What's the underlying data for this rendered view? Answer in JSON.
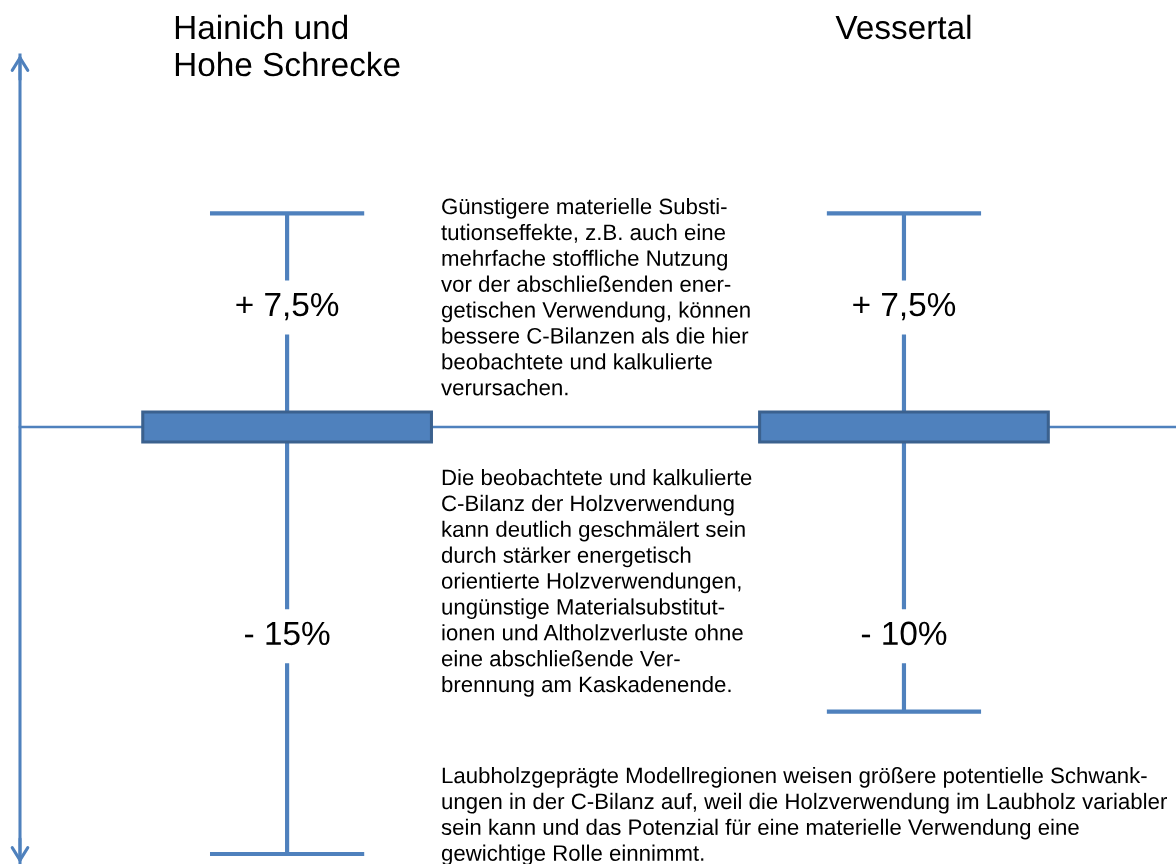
{
  "chart_data": {
    "type": "other",
    "categories": [
      "Hainich und\nHohe Schrecke",
      "Vessertal"
    ],
    "series": [
      {
        "color": "#4f81bd",
        "values": [
          7.5,
          7.5
        ],
        "value_labels": [
          "+ 7,5%",
          "+ 7,5%"
        ]
      },
      {
        "color": "#4f81bd",
        "values": [
          -15,
          -10
        ],
        "value_labels": [
          "- 15%",
          "- 10%"
        ]
      }
    ],
    "annotations": [
      "Günstigere materielle Substi-\ntutionseffekte, z.B. auch eine\nmehrfache stoffliche Nutzung\nvor der abschließenden ener-\ngetischen Verwendung, können\nbessere C-Bilanzen als die hier\nbeobachtete und kalkulierte\nverursachen.",
      "Die beobachtete und kalkulierte\nC-Bilanz der Holzverwendung\nkann deutlich geschmälert sein\ndurch stärker energetisch\norientierte Holzverwendungen,\nungünstige Materialsubstitut-\nionen und Altholzverluste ohne\neine abschließende Ver-\nbrennung am Kaskadenende.",
      "Laubholzgeprägte Modellregionen weisen größere potentielle Schwank-\nungen in der C-Bilanz auf, weil die Holzverwendung im Laubholz variabler\nsein kann und das Potenzial für eine materielle Verwendung eine\ngewichtige Rolle einnimmt."
    ]
  }
}
